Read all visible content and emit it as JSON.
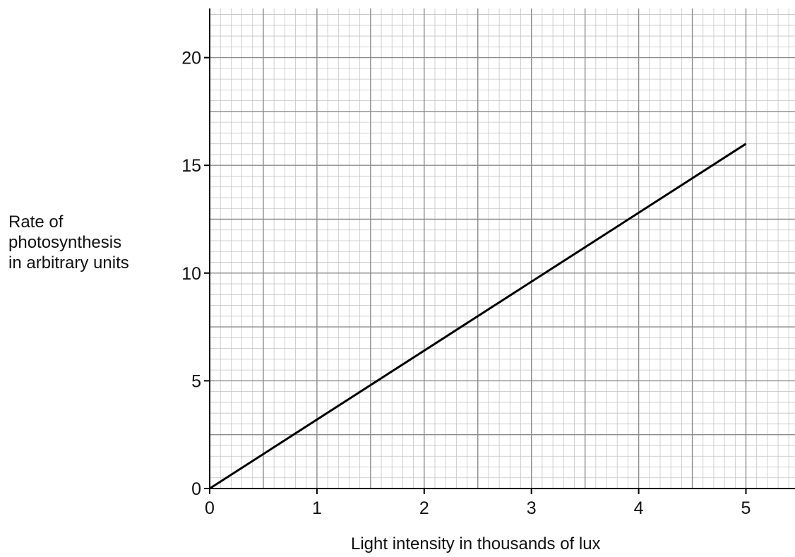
{
  "chart_data": {
    "type": "line",
    "x_label": "Light intensity in thousands of lux",
    "y_label_lines": [
      "Rate of",
      "photosynthesis",
      "in arbitrary units"
    ],
    "x_ticks": [
      0,
      1,
      2,
      3,
      4,
      5
    ],
    "y_ticks": [
      0,
      5,
      10,
      15,
      20
    ],
    "xlim": [
      0,
      5.5
    ],
    "ylim": [
      0,
      22.5
    ],
    "grid": true,
    "grid_minor_per_major_x": 10,
    "grid_minor_per_major_y": 5,
    "series": [
      {
        "x": [
          0,
          5
        ],
        "y": [
          0,
          16
        ]
      }
    ],
    "colors": {
      "line": "#000000",
      "grid_major": "#8c8c8c",
      "grid_minor": "#c4c4c4",
      "axis": "#000000"
    }
  }
}
